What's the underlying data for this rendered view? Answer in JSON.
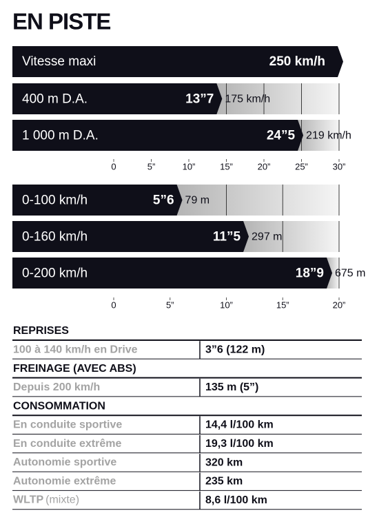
{
  "title": "EN PISTE",
  "top_speed": {
    "label": "Vitesse maxi",
    "value": "250 km/h"
  },
  "chart_data": [
    {
      "type": "bar",
      "orientation": "horizontal",
      "categories": [
        "400 m D.A.",
        "1 000 m D.A."
      ],
      "values": [
        13.7,
        24.5
      ],
      "value_labels": [
        "13”7",
        "24”5"
      ],
      "end_labels": [
        "175 km/h",
        "219 km/h"
      ],
      "color": "#0f0f19",
      "xlim": [
        0,
        30
      ],
      "xticks": [
        0,
        {
          "value": 5,
          "label": "5”"
        },
        {
          "value": 10,
          "label": "10”"
        },
        {
          "value": 15,
          "label": "15”"
        },
        {
          "value": 20,
          "label": "20”"
        },
        {
          "value": 25,
          "label": "25”"
        },
        {
          "value": 30,
          "label": "30”"
        }
      ],
      "grid": true
    },
    {
      "type": "bar",
      "orientation": "horizontal",
      "categories": [
        "0-100 km/h",
        "0-160 km/h",
        "0-200 km/h"
      ],
      "values": [
        5.6,
        11.5,
        18.9
      ],
      "value_labels": [
        "5”6",
        "11”5",
        "18”9"
      ],
      "end_labels": [
        "79 m",
        "297 m",
        "675 m"
      ],
      "color": "#0f0f19",
      "xlim": [
        0,
        20
      ],
      "xticks": [
        0,
        {
          "value": 5,
          "label": "5”"
        },
        {
          "value": 10,
          "label": "10”"
        },
        {
          "value": 15,
          "label": "15”"
        },
        {
          "value": 20,
          "label": "20”"
        }
      ],
      "grid": true
    }
  ],
  "specs": [
    {
      "title": "REPRISES",
      "rows": [
        {
          "label": "100 à 140 km/h en Drive",
          "value": "3”6 (122 m)"
        }
      ]
    },
    {
      "title": "FREINAGE (AVEC ABS)",
      "rows": [
        {
          "label": "Depuis 200 km/h",
          "value": "135 m (5”)"
        }
      ]
    },
    {
      "title": "CONSOMMATION",
      "rows": [
        {
          "label": "En conduite sportive",
          "value": "14,4 l/100 km"
        },
        {
          "label": "En conduite extrême",
          "value": "19,3 l/100 km"
        },
        {
          "label": "Autonomie sportive",
          "value": "320 km"
        },
        {
          "label": "Autonomie extrême",
          "value": "235 km"
        },
        {
          "label": "WLTP",
          "note": "(mixte)",
          "value": "8,6 l/100 km"
        }
      ]
    }
  ]
}
